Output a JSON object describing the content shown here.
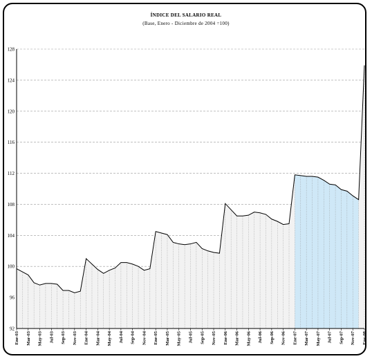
{
  "chart_data": {
    "type": "area",
    "title": "ÍNDICE DEL SALARIO REAL",
    "subtitle": "(Base, Enero - Diciembre de 2004 =100)",
    "xlabel": "",
    "ylabel": "",
    "ylim": [
      92,
      128
    ],
    "yticks": [
      "92",
      "96",
      "100",
      "104",
      "108",
      "112",
      "116",
      "120",
      "124",
      "128"
    ],
    "x_tick_labels": [
      "Ene-03",
      "Mar-03",
      "May-03",
      "Jul-03",
      "Sep-03",
      "Nov-03",
      "Ene-04",
      "Mar-04",
      "May-04",
      "Jul-04",
      "Sep-04",
      "Nov-04",
      "Ene-05",
      "Mar-05",
      "May-05",
      "Jul-05",
      "Sep-05",
      "Nov-05",
      "Ene-06",
      "Mar-06",
      "May-06",
      "Jul-06",
      "Sep-06",
      "Nov-06",
      "Ene-07",
      "Mar-07",
      "May-07",
      "Jul-07",
      "Sep-07",
      "Nov-07",
      "Ene-08"
    ],
    "values": [
      99.7,
      99.3,
      98.9,
      97.9,
      97.6,
      97.8,
      97.8,
      97.7,
      96.9,
      96.9,
      96.6,
      96.8,
      101.0,
      100.3,
      99.6,
      99.1,
      99.5,
      99.8,
      100.5,
      100.5,
      100.3,
      100.0,
      99.5,
      99.7,
      104.5,
      104.3,
      104.1,
      103.1,
      102.9,
      102.8,
      102.9,
      103.1,
      102.3,
      102.0,
      101.8,
      101.7,
      108.1,
      107.3,
      106.5,
      106.5,
      106.6,
      107.0,
      106.9,
      106.7,
      106.1,
      105.8,
      105.4,
      105.5,
      111.8,
      111.7,
      111.6,
      111.6,
      111.5,
      111.1,
      110.6,
      110.5,
      109.9,
      109.7,
      109.1,
      108.6,
      125.9
    ],
    "grid": true,
    "colors": {
      "area_2007": "#cfe8f7",
      "area_other": "#f2f2f2",
      "line": "#000000",
      "grid": "#999999"
    }
  }
}
